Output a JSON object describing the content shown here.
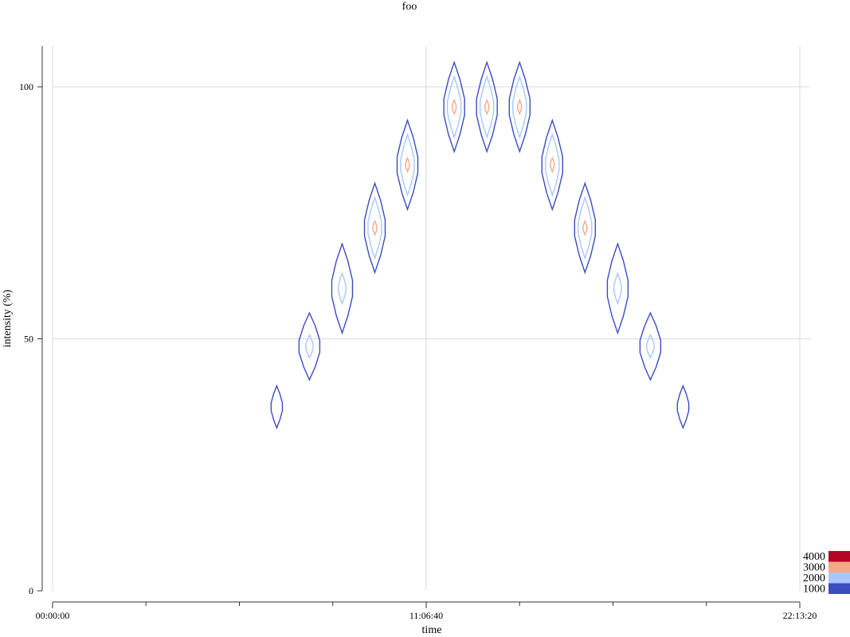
{
  "chart_data": {
    "type": "contour",
    "title": "foo",
    "xlabel": "time",
    "ylabel": "intensity (%)",
    "x_ticks": [
      "00:00:00",
      "11:06:40",
      "22:13:20"
    ],
    "y_ticks": [
      "0",
      "50",
      "100"
    ],
    "xlim_seconds": [
      0,
      80000
    ],
    "ylim": [
      0,
      100
    ],
    "grid": true,
    "levels": [
      1000,
      2000,
      3000,
      4000
    ],
    "level_colors": [
      "#3b4cc0",
      "#aac7fd",
      "#f7a889",
      "#b40426"
    ],
    "legend": [
      "4000",
      "3000",
      "2000",
      "1000"
    ],
    "legend_position": "bottom-right",
    "peaks": [
      {
        "time": 24000,
        "intensity": 36.5,
        "max_level": 1000
      },
      {
        "time": 27500,
        "intensity": 48.5,
        "max_level": 2000
      },
      {
        "time": 31000,
        "intensity": 60,
        "max_level": 2000
      },
      {
        "time": 34500,
        "intensity": 72,
        "max_level": 3000
      },
      {
        "time": 38000,
        "intensity": 84.5,
        "max_level": 3000
      },
      {
        "time": 43000,
        "intensity": 96,
        "max_level": 3000
      },
      {
        "time": 46500,
        "intensity": 96,
        "max_level": 3000
      },
      {
        "time": 50000,
        "intensity": 96,
        "max_level": 3000
      },
      {
        "time": 53500,
        "intensity": 84.5,
        "max_level": 3000
      },
      {
        "time": 57000,
        "intensity": 72,
        "max_level": 3000
      },
      {
        "time": 60500,
        "intensity": 60,
        "max_level": 2000
      },
      {
        "time": 64000,
        "intensity": 48.5,
        "max_level": 2000
      },
      {
        "time": 67500,
        "intensity": 36.5,
        "max_level": 1000
      }
    ]
  }
}
